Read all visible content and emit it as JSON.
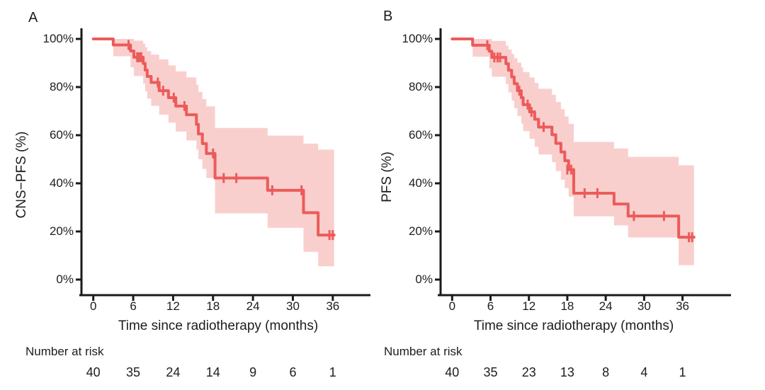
{
  "figure": {
    "background": "#ffffff",
    "colors": {
      "curve": "#ec5b5b",
      "band": "#f9cfcd",
      "axis": "#1a1a1a",
      "text": "#1d1d1d"
    }
  },
  "chart_data": [
    {
      "type": "line",
      "subtype": "kaplan-meier-step",
      "panel_label": "A",
      "ylabel": "CNS−PFS (%)",
      "xlabel": "Time since radiotherapy (months)",
      "risk_label": "Number at risk",
      "xlim": [
        0,
        42
      ],
      "ylim": [
        0,
        100
      ],
      "grid": false,
      "legend": "none",
      "x_tick_months": [
        0,
        6,
        12,
        18,
        24,
        30,
        36
      ],
      "x_tick_labels": [
        "0",
        "6",
        "12",
        "18",
        "24",
        "30",
        "36"
      ],
      "y_tick_pcts": [
        100,
        80,
        60,
        40,
        20,
        0
      ],
      "y_tick_labels": [
        "100%",
        "80%",
        "60%",
        "40%",
        "20%",
        "0%"
      ],
      "risk_counts": [
        "40",
        "35",
        "24",
        "14",
        "9",
        "6",
        "1"
      ],
      "end_time": 36.2,
      "steps": [
        [
          0,
          100
        ],
        [
          3,
          97.5
        ],
        [
          5.6,
          95
        ],
        [
          6.1,
          92.4
        ],
        [
          7.5,
          89.8
        ],
        [
          7.8,
          87.1
        ],
        [
          8.1,
          84.4
        ],
        [
          8.7,
          81.9
        ],
        [
          9.9,
          78.5
        ],
        [
          11.3,
          75.6
        ],
        [
          12.4,
          72.1
        ],
        [
          14,
          68.5
        ],
        [
          15.5,
          64.5
        ],
        [
          15.8,
          60.5
        ],
        [
          16.4,
          56.5
        ],
        [
          17,
          52.4
        ],
        [
          18.3,
          42.2
        ],
        [
          26.2,
          37.1
        ],
        [
          31.6,
          27.8
        ],
        [
          33.8,
          18.5
        ]
      ],
      "censors": [
        [
          5.3,
          97.5
        ],
        [
          6.6,
          92.4
        ],
        [
          6.9,
          92.4
        ],
        [
          7.2,
          92.4
        ],
        [
          9.7,
          81.9
        ],
        [
          10.5,
          78.5
        ],
        [
          12.1,
          75.6
        ],
        [
          13.7,
          72.1
        ],
        [
          18,
          52.4
        ],
        [
          19.6,
          42.2
        ],
        [
          21.5,
          42.2
        ],
        [
          26.9,
          37.1
        ],
        [
          31.3,
          37.1
        ],
        [
          35.5,
          18.5
        ],
        [
          36,
          18.5
        ]
      ],
      "ci_band": [
        [
          3,
          92.8,
          100
        ],
        [
          5.6,
          88.2,
          100
        ],
        [
          6.1,
          84.6,
          99.3
        ],
        [
          7.5,
          81.4,
          98
        ],
        [
          7.8,
          78.2,
          96.5
        ],
        [
          8.1,
          75.2,
          95
        ],
        [
          8.7,
          72.2,
          93.5
        ],
        [
          9.9,
          68.5,
          91.5
        ],
        [
          11.3,
          65.2,
          89
        ],
        [
          12.4,
          61.5,
          86.5
        ],
        [
          14,
          57.8,
          84
        ],
        [
          15.5,
          54,
          81
        ],
        [
          15.8,
          50,
          78
        ],
        [
          16.4,
          46,
          75
        ],
        [
          17,
          42.2,
          72
        ],
        [
          18.3,
          27.5,
          63
        ],
        [
          26.2,
          21.5,
          59.8
        ],
        [
          31.6,
          11.5,
          56.5
        ],
        [
          33.8,
          5.5,
          54
        ]
      ]
    },
    {
      "type": "line",
      "subtype": "kaplan-meier-step",
      "panel_label": "B",
      "ylabel": "PFS (%)",
      "xlabel": "Time since radiotherapy (months)",
      "risk_label": "Number at risk",
      "xlim": [
        0,
        42
      ],
      "ylim": [
        0,
        100
      ],
      "grid": false,
      "legend": "none",
      "x_tick_months": [
        0,
        6,
        12,
        18,
        24,
        30,
        36
      ],
      "x_tick_labels": [
        "0",
        "6",
        "12",
        "18",
        "24",
        "30",
        "36"
      ],
      "y_tick_pcts": [
        100,
        80,
        60,
        40,
        20,
        0
      ],
      "y_tick_labels": [
        "100%",
        "80%",
        "60%",
        "40%",
        "20%",
        "0%"
      ],
      "risk_counts": [
        "40",
        "35",
        "23",
        "13",
        "8",
        "4",
        "1"
      ],
      "end_time": 37.8,
      "steps": [
        [
          0,
          100
        ],
        [
          3.2,
          97.4
        ],
        [
          5.8,
          94.9
        ],
        [
          6.2,
          92.3
        ],
        [
          8.4,
          89.7
        ],
        [
          8.8,
          87
        ],
        [
          9.3,
          84.2
        ],
        [
          9.7,
          81.4
        ],
        [
          10.2,
          78.5
        ],
        [
          10.8,
          75.6
        ],
        [
          11.1,
          72.7
        ],
        [
          12.1,
          69.7
        ],
        [
          12.9,
          66.6
        ],
        [
          13.5,
          63.4
        ],
        [
          15.6,
          60.2
        ],
        [
          16.2,
          56.6
        ],
        [
          17,
          53
        ],
        [
          17.6,
          49.4
        ],
        [
          18.2,
          45.7
        ],
        [
          19,
          35.9
        ],
        [
          25.3,
          31.4
        ],
        [
          27.5,
          26.4
        ],
        [
          35.4,
          17.6
        ]
      ],
      "censors": [
        [
          5.5,
          97.4
        ],
        [
          6.6,
          92.3
        ],
        [
          7.1,
          92.3
        ],
        [
          7.5,
          92.3
        ],
        [
          10.5,
          78.5
        ],
        [
          11.8,
          72.7
        ],
        [
          12.4,
          69.7
        ],
        [
          14.3,
          63.4
        ],
        [
          18,
          45.7
        ],
        [
          18.6,
          45.7
        ],
        [
          20.7,
          35.9
        ],
        [
          22.7,
          35.9
        ],
        [
          28.4,
          26.4
        ],
        [
          33.1,
          26.4
        ],
        [
          37,
          17.6
        ],
        [
          37.5,
          17.6
        ]
      ],
      "ci_band": [
        [
          3.2,
          92.6,
          100
        ],
        [
          5.8,
          87.8,
          100
        ],
        [
          6.2,
          84.3,
          99.2
        ],
        [
          8.4,
          81.2,
          97.2
        ],
        [
          8.8,
          77.8,
          95.6
        ],
        [
          9.3,
          74.4,
          93.8
        ],
        [
          9.7,
          71.2,
          92
        ],
        [
          10.2,
          68,
          90.2
        ],
        [
          10.8,
          64.8,
          88.2
        ],
        [
          11.1,
          61.7,
          86.2
        ],
        [
          12.1,
          58.5,
          84
        ],
        [
          12.9,
          55.2,
          81.7
        ],
        [
          13.5,
          52,
          79.3
        ],
        [
          15.6,
          48.8,
          76.8
        ],
        [
          16.2,
          45.1,
          73.8
        ],
        [
          17,
          41.5,
          70.8
        ],
        [
          17.6,
          38,
          67.8
        ],
        [
          18.2,
          34.5,
          64.7
        ],
        [
          19,
          26.3,
          57.2
        ],
        [
          25.3,
          22.5,
          54.5
        ],
        [
          27.5,
          17.5,
          51
        ],
        [
          35.4,
          6,
          47.5
        ]
      ]
    }
  ]
}
